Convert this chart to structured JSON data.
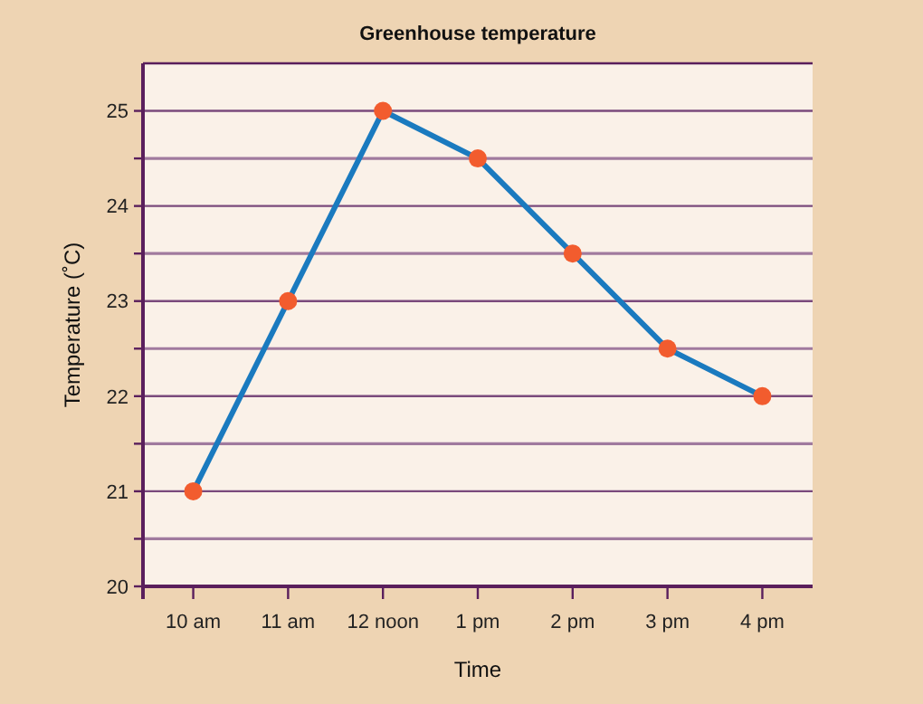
{
  "chart_data": {
    "type": "line",
    "title": "Greenhouse temperature",
    "xlabel": "Time",
    "ylabel": "Temperature (˚C)",
    "categories": [
      "10 am",
      "11 am",
      "12 noon",
      "1 pm",
      "2 pm",
      "3 pm",
      "4 pm"
    ],
    "series": [
      {
        "color": "#1a7abf",
        "values": [
          21,
          23,
          25,
          24.5,
          23.5,
          22.5,
          22
        ]
      }
    ],
    "ylim": [
      20,
      25.5
    ],
    "yticks": [
      20,
      {
        "value": 20.5,
        "label": null
      },
      21,
      {
        "value": 21.5,
        "label": null
      },
      22,
      {
        "value": 22.5,
        "label": null
      },
      23,
      {
        "value": 23.5,
        "label": null
      },
      24,
      {
        "value": 24.5,
        "label": null
      },
      25
    ],
    "grid": "y",
    "marker": "circle",
    "line_style": "solid"
  }
}
